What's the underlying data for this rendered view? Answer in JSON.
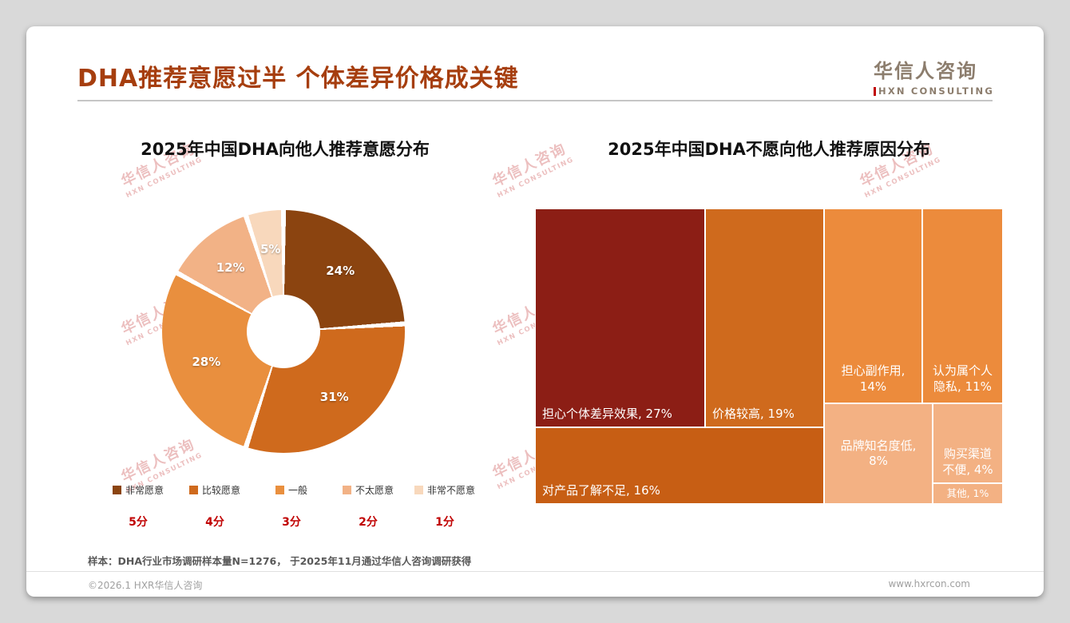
{
  "page": {
    "title": "DHA推荐意愿过半 个体差异价格成关键",
    "logo": {
      "name": "华信人咨询",
      "sub": "HXN CONSULTING"
    },
    "watermark": {
      "line1": "华信人咨询",
      "line2": "HXN CONSULTING"
    },
    "footnote": "样本：DHA行业市场调研样本量N=1276， 于2025年11月通过华信人咨询调研获得",
    "footer": {
      "left": "©2026.1 HXR华信人咨询",
      "right": "www.hxrcon.com"
    }
  },
  "chart_data": [
    {
      "type": "pie",
      "subtype": "donut",
      "title": "2025年中国DHA向他人推荐意愿分布",
      "categories": [
        "非常愿意",
        "比较愿意",
        "一般",
        "不太愿意",
        "非常不愿意"
      ],
      "values": [
        24,
        31,
        28,
        12,
        5
      ],
      "labels": [
        "24%",
        "31%",
        "28%",
        "12%",
        "5%"
      ],
      "scores": [
        "5分",
        "4分",
        "3分",
        "2分",
        "1分"
      ],
      "colors": [
        "#8B4410",
        "#CF6A1D",
        "#E98F3E",
        "#F2B286",
        "#F8D8BC"
      ],
      "legend_position": "bottom",
      "start_angle_deg": 0,
      "direction": "clockwise"
    },
    {
      "type": "treemap",
      "title": "2025年中国DHA不愿向他人推荐原因分布",
      "items": [
        {
          "label": "担心个体差异效果",
          "value": 27,
          "display": "担心个体差异效果, 27%",
          "color": "#8C1E15"
        },
        {
          "label": "价格较高",
          "value": 19,
          "display": "价格较高, 19%",
          "color": "#CF6A1D"
        },
        {
          "label": "担心副作用",
          "value": 14,
          "display": "担心副作用, 14%",
          "color": "#EC8B3C"
        },
        {
          "label": "认为属个人隐私",
          "value": 11,
          "display": "认为属个人隐私, 11%",
          "color": "#EC8B3C"
        },
        {
          "label": "对产品了解不足",
          "value": 16,
          "display": "对产品了解不足, 16%",
          "color": "#C75E14"
        },
        {
          "label": "品牌知名度低",
          "value": 8,
          "display": "品牌知名度低, 8%",
          "color": "#F3B183"
        },
        {
          "label": "购买渠道不便",
          "value": 4,
          "display": "购买渠道不便, 4%",
          "color": "#F3B183"
        },
        {
          "label": "其他",
          "value": 1,
          "display": "其他, 1%",
          "color": "#F3B183"
        }
      ]
    }
  ]
}
